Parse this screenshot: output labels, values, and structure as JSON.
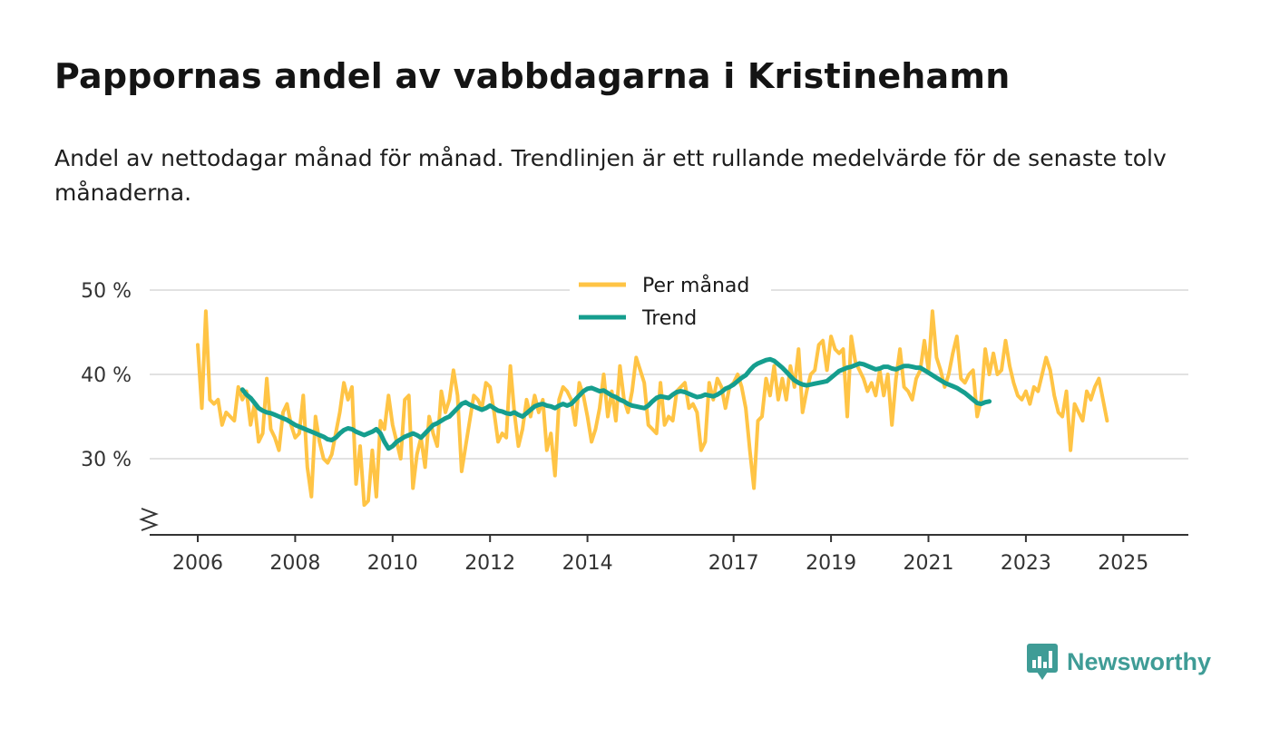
{
  "title": "Pappornas andel av vabbdagarna i Kristinehamn",
  "subtitle": "Andel av nettodagar månad för månad. Trendlinjen är ett rullande medelvärde för de senaste tolv månaderna.",
  "brand": {
    "name": "Newsworthy"
  },
  "colors": {
    "monthly": "#FFC445",
    "trend": "#159E8E",
    "grid": "#d9d9d9",
    "axis": "#333333",
    "brand": "#3f9c96"
  },
  "chart_data": {
    "type": "line",
    "title": "Pappornas andel av vabbdagarna i Kristinehamn",
    "xlabel": "",
    "ylabel": "",
    "xlim": [
      2006,
      2026.3
    ],
    "ylim": [
      21,
      50
    ],
    "y_ticks": [
      30,
      40,
      50
    ],
    "y_tick_labels": [
      "30 %",
      "40 %",
      "50 %"
    ],
    "x_ticks": [
      2006,
      2008,
      2010,
      2012,
      2014,
      2017,
      2019,
      2021,
      2023,
      2025
    ],
    "x_tick_labels": [
      "2006",
      "2008",
      "2010",
      "2012",
      "2014",
      "2017",
      "2019",
      "2021",
      "2023",
      "2025"
    ],
    "y_axis_break": true,
    "grid": true,
    "legend_position": "top-center",
    "series": [
      {
        "name": "Per månad",
        "color": "#FFC445",
        "start": 2006.0,
        "step": 0.08333,
        "values": [
          43.5,
          36.0,
          47.5,
          37.0,
          36.5,
          37.0,
          34.0,
          35.5,
          35.0,
          34.5,
          38.5,
          37.0,
          38.0,
          34.0,
          36.5,
          32.0,
          33.0,
          39.5,
          33.5,
          32.5,
          31.0,
          35.5,
          36.5,
          34.0,
          32.5,
          33.0,
          37.5,
          29.0,
          25.5,
          35.0,
          32.0,
          30.0,
          29.5,
          30.5,
          33.0,
          35.5,
          39.0,
          37.0,
          38.5,
          27.0,
          31.5,
          24.5,
          25.0,
          31.0,
          25.5,
          34.5,
          33.5,
          37.5,
          34.0,
          32.0,
          30.0,
          37.0,
          37.5,
          26.5,
          30.5,
          32.5,
          29.0,
          35.0,
          33.0,
          31.5,
          38.0,
          35.5,
          37.0,
          40.5,
          37.5,
          28.5,
          31.5,
          34.5,
          37.5,
          37.0,
          36.0,
          39.0,
          38.5,
          35.5,
          32.0,
          33.0,
          32.5,
          41.0,
          35.5,
          31.5,
          33.5,
          37.0,
          35.0,
          37.5,
          35.5,
          37.0,
          31.0,
          33.0,
          28.0,
          37.0,
          38.5,
          38.0,
          37.0,
          34.0,
          39.0,
          37.5,
          35.0,
          32.0,
          33.5,
          36.0,
          40.0,
          35.0,
          38.0,
          34.5,
          41.0,
          37.0,
          35.5,
          38.0,
          42.0,
          40.5,
          39.0,
          34.0,
          33.5,
          33.0,
          39.0,
          34.0,
          35.0,
          34.5,
          38.0,
          38.5,
          39.0,
          36.0,
          36.5,
          35.5,
          31.0,
          32.0,
          39.0,
          37.0,
          39.5,
          38.5,
          36.0,
          38.5,
          39.0,
          40.0,
          38.5,
          36.0,
          31.0,
          26.5,
          34.5,
          35.0,
          39.5,
          37.5,
          41.0,
          37.0,
          39.5,
          37.0,
          41.0,
          38.5,
          43.0,
          35.5,
          38.0,
          40.0,
          40.5,
          43.5,
          44.0,
          40.5,
          44.5,
          43.0,
          42.5,
          43.0,
          35.0,
          44.5,
          41.5,
          40.5,
          39.5,
          38.0,
          39.0,
          37.5,
          40.5,
          37.5,
          40.0,
          34.0,
          39.5,
          43.0,
          38.5,
          38.0,
          37.0,
          39.5,
          40.5,
          44.0,
          40.5,
          47.5,
          42.0,
          40.5,
          38.5,
          40.0,
          42.5,
          44.5,
          39.5,
          39.0,
          40.0,
          40.5,
          35.0,
          37.0,
          43.0,
          40.0,
          42.5,
          40.0,
          40.5,
          44.0,
          41.0,
          39.0,
          37.5,
          37.0,
          38.0,
          36.5,
          38.5,
          38.0,
          40.0,
          42.0,
          40.5,
          37.5,
          35.5,
          35.0,
          38.0,
          31.0,
          36.5,
          35.5,
          34.5,
          38.0,
          37.0,
          38.5,
          39.5,
          37.0,
          34.5
        ]
      },
      {
        "name": "Trend",
        "color": "#159E8E",
        "start": 2006.9167,
        "step": 0.08333,
        "values": [
          38.2,
          37.6,
          37.2,
          36.6,
          36.0,
          35.7,
          35.5,
          35.4,
          35.2,
          35.0,
          34.8,
          34.6,
          34.3,
          34.0,
          33.8,
          33.6,
          33.4,
          33.2,
          33.0,
          32.8,
          32.6,
          32.3,
          32.2,
          32.5,
          33.0,
          33.4,
          33.6,
          33.5,
          33.2,
          33.0,
          32.8,
          33.0,
          33.2,
          33.5,
          33.0,
          32.0,
          31.2,
          31.5,
          32.0,
          32.3,
          32.6,
          32.8,
          33.0,
          32.8,
          32.5,
          33.0,
          33.5,
          34.0,
          34.2,
          34.5,
          34.8,
          35.0,
          35.5,
          36.0,
          36.5,
          36.7,
          36.4,
          36.2,
          36.0,
          35.8,
          36.0,
          36.3,
          36.0,
          35.7,
          35.6,
          35.4,
          35.3,
          35.5,
          35.2,
          35.0,
          35.4,
          35.8,
          36.2,
          36.4,
          36.5,
          36.3,
          36.2,
          36.0,
          36.3,
          36.5,
          36.3,
          36.5,
          37.0,
          37.5,
          38.0,
          38.3,
          38.4,
          38.2,
          38.0,
          38.1,
          37.8,
          37.5,
          37.3,
          37.0,
          36.8,
          36.5,
          36.3,
          36.2,
          36.1,
          36.0,
          36.3,
          36.8,
          37.2,
          37.4,
          37.3,
          37.2,
          37.6,
          37.9,
          38.0,
          37.9,
          37.7,
          37.5,
          37.3,
          37.4,
          37.6,
          37.5,
          37.4,
          37.6,
          37.9,
          38.3,
          38.5,
          38.8,
          39.2,
          39.6,
          39.9,
          40.5,
          41.0,
          41.3,
          41.5,
          41.7,
          41.8,
          41.6,
          41.2,
          40.8,
          40.3,
          39.8,
          39.3,
          39.0,
          38.8,
          38.7,
          38.8,
          38.9,
          39.0,
          39.1,
          39.2,
          39.6,
          40.0,
          40.4,
          40.6,
          40.8,
          40.9,
          41.1,
          41.3,
          41.2,
          41.0,
          40.8,
          40.6,
          40.7,
          40.9,
          40.9,
          40.7,
          40.6,
          40.8,
          41.0,
          41.0,
          40.9,
          40.8,
          40.8,
          40.5,
          40.2,
          39.9,
          39.6,
          39.3,
          39.0,
          38.8,
          38.6,
          38.4,
          38.1,
          37.8,
          37.4,
          37.0,
          36.6,
          36.5,
          36.7,
          36.8
        ]
      }
    ]
  }
}
